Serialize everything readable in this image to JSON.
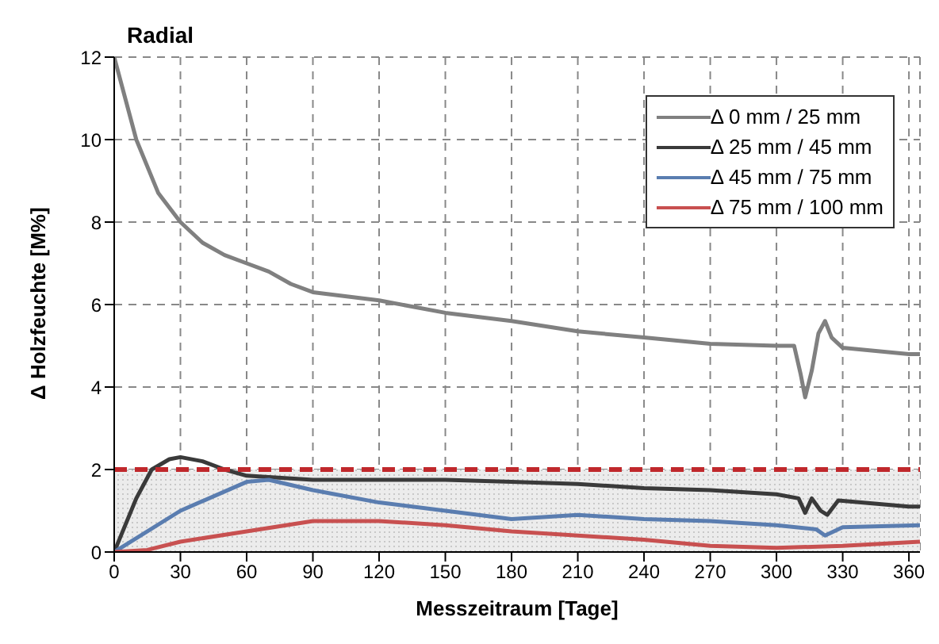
{
  "chart_data": {
    "type": "line",
    "title": "Radial",
    "xlabel": "Messzeitraum [Tage]",
    "ylabel": "Δ Holzfeuchte [M%]",
    "xlim": [
      0,
      365
    ],
    "xticks": [
      0,
      30,
      60,
      90,
      120,
      150,
      180,
      210,
      240,
      270,
      300,
      330,
      360
    ],
    "ylim": [
      0,
      12
    ],
    "yticks": [
      0,
      2,
      4,
      6,
      8,
      10,
      12
    ],
    "grid": true,
    "legend": "top right",
    "marker": "none",
    "line_style": "solid",
    "series": [
      {
        "name": "Δ 0 mm / 25 mm",
        "color": "#808080",
        "x": [
          0,
          10,
          20,
          30,
          40,
          50,
          60,
          70,
          80,
          90,
          120,
          150,
          180,
          210,
          240,
          270,
          300,
          308,
          311,
          313,
          316,
          319,
          322,
          325,
          330,
          360,
          365
        ],
        "values": [
          12,
          10,
          8.7,
          8.0,
          7.5,
          7.2,
          7.0,
          6.8,
          6.5,
          6.3,
          6.1,
          5.8,
          5.6,
          5.35,
          5.2,
          5.05,
          5.0,
          5.0,
          4.3,
          3.75,
          4.4,
          5.3,
          5.6,
          5.2,
          4.95,
          4.8,
          4.8
        ]
      },
      {
        "name": "Δ 25 mm / 45 mm",
        "color": "#3a3a3a",
        "x": [
          0,
          10,
          17,
          25,
          30,
          40,
          50,
          60,
          90,
          120,
          150,
          180,
          210,
          240,
          270,
          300,
          310,
          313,
          316,
          320,
          323,
          328,
          360,
          365
        ],
        "values": [
          0,
          1.3,
          2.0,
          2.25,
          2.3,
          2.2,
          2.0,
          1.85,
          1.75,
          1.75,
          1.75,
          1.7,
          1.65,
          1.55,
          1.5,
          1.4,
          1.3,
          0.95,
          1.3,
          1.0,
          0.9,
          1.25,
          1.1,
          1.1
        ]
      },
      {
        "name": "Δ 45 mm / 75 mm",
        "color": "#5a7db0",
        "x": [
          0,
          30,
          60,
          70,
          90,
          120,
          150,
          180,
          210,
          240,
          270,
          300,
          318,
          322,
          330,
          365
        ],
        "values": [
          0,
          1.0,
          1.7,
          1.75,
          1.5,
          1.2,
          1.0,
          0.8,
          0.9,
          0.8,
          0.75,
          0.65,
          0.55,
          0.4,
          0.6,
          0.65
        ]
      },
      {
        "name": "Δ 75 mm / 100 mm",
        "color": "#c85050",
        "x": [
          0,
          15,
          30,
          60,
          90,
          120,
          150,
          180,
          210,
          240,
          270,
          300,
          330,
          365
        ],
        "values": [
          0,
          0.05,
          0.25,
          0.5,
          0.75,
          0.75,
          0.65,
          0.5,
          0.4,
          0.3,
          0.15,
          0.1,
          0.15,
          0.25
        ]
      }
    ],
    "ref_lines": [
      {
        "axis": "y",
        "value": 2,
        "color": "#c0282c",
        "line_style": "dashed"
      }
    ],
    "bands": [
      {
        "axis": "y",
        "from": 0,
        "to": 2,
        "color": "#c8c8c8"
      }
    ]
  }
}
